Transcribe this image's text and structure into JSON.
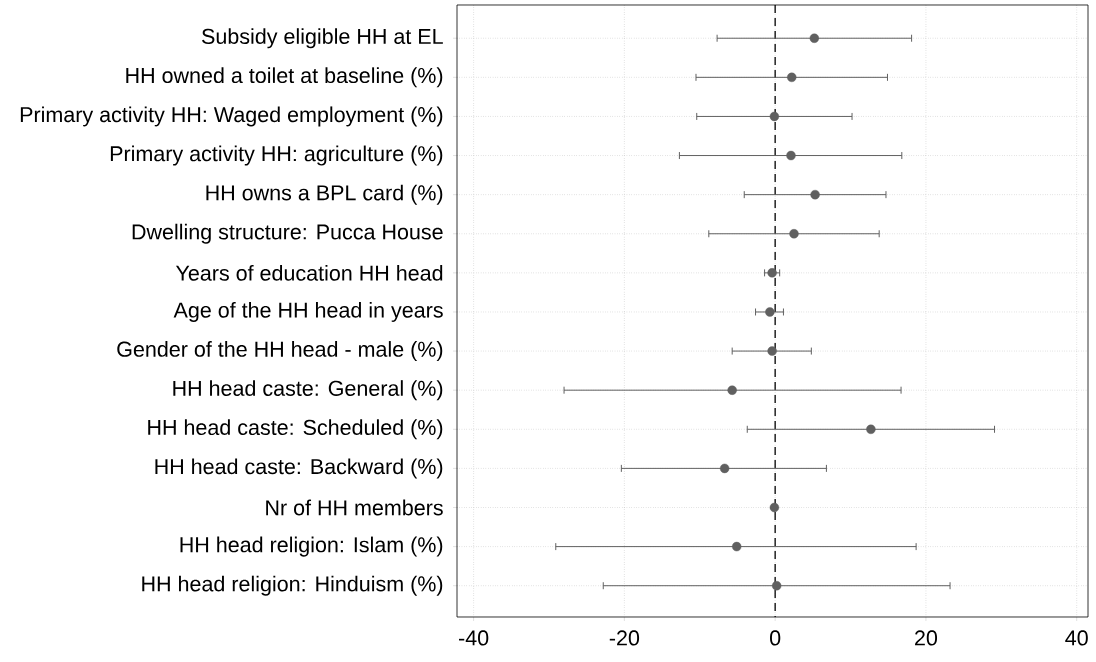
{
  "chart_data": {
    "type": "scatter",
    "orientation": "horizontal",
    "categories": [
      "Subsidy eligible HH at EL",
      "HH owned a toilet at baseline (%)",
      "Primary activity HH: Waged employment (%)",
      "Primary activity HH: agriculture (%)",
      "HH owns a BPL card (%)",
      "Dwelling structure: Pucca House",
      "Years of education HH head",
      "Age of the HH head in years",
      "Gender of the HH head - male (%)",
      "HH head caste: General (%)",
      "HH head caste: Scheduled (%)",
      "HH head caste: Backward (%)",
      "Nr of HH members",
      "HH head religion: Islam (%)",
      "HH head religion: Hinduism (%)"
    ],
    "values": [
      5.2,
      2.2,
      -0.1,
      2.1,
      5.3,
      2.5,
      -0.4,
      -0.7,
      -0.4,
      -5.7,
      12.7,
      -6.7,
      -0.1,
      -5.1,
      0.2
    ],
    "errors": [
      [
        -7.7,
        18.1
      ],
      [
        -10.5,
        14.9
      ],
      [
        -10.4,
        10.2
      ],
      [
        -12.7,
        16.8
      ],
      [
        -4.1,
        14.7
      ],
      [
        -8.8,
        13.8
      ],
      [
        -1.4,
        0.6
      ],
      [
        -2.6,
        1.1
      ],
      [
        -5.7,
        4.8
      ],
      [
        -28.0,
        16.7
      ],
      [
        -3.7,
        29.1
      ],
      [
        -20.4,
        6.8
      ],
      null,
      [
        -29.1,
        18.7
      ],
      [
        -22.8,
        23.2
      ]
    ],
    "color": "#606060",
    "grid": true,
    "xlim": [
      -42.2,
      41.5
    ],
    "xticks": [
      -40,
      -20,
      0,
      20,
      40
    ],
    "ref_lines": [
      {
        "axis": "x",
        "value": 0,
        "color": "#000000",
        "line_style": "dashed"
      }
    ]
  }
}
